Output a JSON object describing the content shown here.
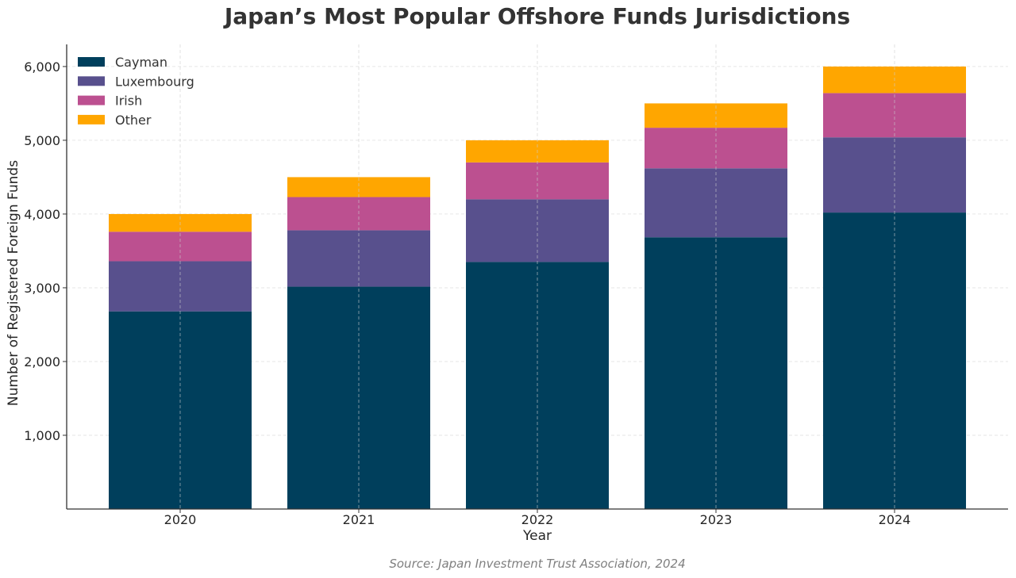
{
  "chart_data": {
    "type": "bar",
    "stacked": true,
    "title": "Japan’s Most Popular Offshore Funds Jurisdictions",
    "source": "Source: Japan Investment Trust Association, 2024",
    "xlabel": "Year",
    "ylabel": "Number of Registered Foreign Funds",
    "categories": [
      "2020",
      "2021",
      "2022",
      "2023",
      "2024"
    ],
    "ylim": [
      0,
      6300
    ],
    "yticks": [
      1000,
      2000,
      3000,
      4000,
      5000,
      6000
    ],
    "ytick_labels": [
      "1,000",
      "2,000",
      "3,000",
      "4,000",
      "5,000",
      "6,000"
    ],
    "grid": true,
    "legend_position": "top-left",
    "series": [
      {
        "name": "Cayman",
        "color": "#003f5c",
        "values": [
          2680,
          3015,
          3350,
          3685,
          4020
        ]
      },
      {
        "name": "Luxembourg",
        "color": "#58508d",
        "values": [
          680,
          765,
          850,
          935,
          1020
        ]
      },
      {
        "name": "Irish",
        "color": "#bc5090",
        "values": [
          400,
          450,
          500,
          550,
          600
        ]
      },
      {
        "name": "Other",
        "color": "#ffa600",
        "values": [
          240,
          270,
          300,
          330,
          360
        ]
      }
    ]
  }
}
